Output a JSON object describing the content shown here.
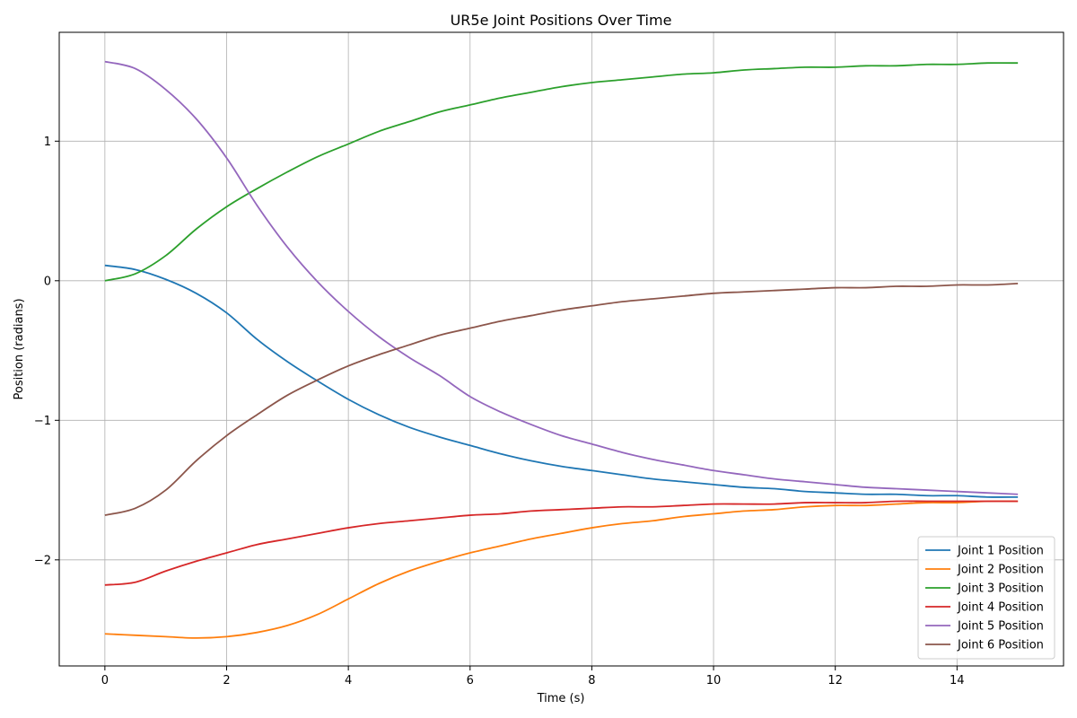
{
  "chart_data": {
    "type": "line",
    "title": "UR5e Joint Positions Over Time",
    "xlabel": "Time (s)",
    "ylabel": "Position (radians)",
    "xlim": [
      -0.75,
      15.75
    ],
    "ylim": [
      -2.76,
      1.78
    ],
    "x_ticks": [
      0,
      2,
      4,
      6,
      8,
      10,
      12,
      14
    ],
    "x_tick_labels": [
      "0",
      "2",
      "4",
      "6",
      "8",
      "10",
      "12",
      "14"
    ],
    "y_ticks": [
      1,
      0,
      -1,
      -2
    ],
    "y_tick_labels": [
      "1",
      "0",
      "−1",
      "−2"
    ],
    "grid": true,
    "legend_position": "lower-right",
    "x": [
      0,
      0.5,
      1,
      1.5,
      2,
      2.5,
      3,
      3.5,
      4,
      4.5,
      5,
      5.5,
      6,
      6.5,
      7,
      7.5,
      8,
      8.5,
      9,
      9.5,
      10,
      10.5,
      11,
      11.5,
      12,
      12.5,
      13,
      13.5,
      14,
      14.5,
      15
    ],
    "series": [
      {
        "name": "Joint 1 Position",
        "color": "#1f77b4",
        "values": [
          0.11,
          0.08,
          0.01,
          -0.09,
          -0.23,
          -0.42,
          -0.58,
          -0.72,
          -0.85,
          -0.96,
          -1.05,
          -1.12,
          -1.18,
          -1.24,
          -1.29,
          -1.33,
          -1.36,
          -1.39,
          -1.42,
          -1.44,
          -1.46,
          -1.48,
          -1.49,
          -1.51,
          -1.52,
          -1.53,
          -1.53,
          -1.54,
          -1.54,
          -1.55,
          -1.55
        ]
      },
      {
        "name": "Joint 2 Position",
        "color": "#ff7f0e",
        "values": [
          -2.53,
          -2.54,
          -2.55,
          -2.56,
          -2.55,
          -2.52,
          -2.47,
          -2.39,
          -2.28,
          -2.17,
          -2.08,
          -2.01,
          -1.95,
          -1.9,
          -1.85,
          -1.81,
          -1.77,
          -1.74,
          -1.72,
          -1.69,
          -1.67,
          -1.65,
          -1.64,
          -1.62,
          -1.61,
          -1.61,
          -1.6,
          -1.59,
          -1.59,
          -1.58,
          -1.58
        ]
      },
      {
        "name": "Joint 3 Position",
        "color": "#2ca02c",
        "values": [
          0.0,
          0.05,
          0.18,
          0.37,
          0.53,
          0.66,
          0.78,
          0.89,
          0.98,
          1.07,
          1.14,
          1.21,
          1.26,
          1.31,
          1.35,
          1.39,
          1.42,
          1.44,
          1.46,
          1.48,
          1.49,
          1.51,
          1.52,
          1.53,
          1.53,
          1.54,
          1.54,
          1.55,
          1.55,
          1.56,
          1.56
        ]
      },
      {
        "name": "Joint 4 Position",
        "color": "#d62728",
        "values": [
          -2.18,
          -2.16,
          -2.08,
          -2.01,
          -1.95,
          -1.89,
          -1.85,
          -1.81,
          -1.77,
          -1.74,
          -1.72,
          -1.7,
          -1.68,
          -1.67,
          -1.65,
          -1.64,
          -1.63,
          -1.62,
          -1.62,
          -1.61,
          -1.6,
          -1.6,
          -1.6,
          -1.59,
          -1.59,
          -1.59,
          -1.58,
          -1.58,
          -1.58,
          -1.58,
          -1.58
        ]
      },
      {
        "name": "Joint 5 Position",
        "color": "#9467bd",
        "values": [
          1.57,
          1.52,
          1.37,
          1.16,
          0.88,
          0.54,
          0.24,
          -0.01,
          -0.22,
          -0.4,
          -0.55,
          -0.68,
          -0.83,
          -0.94,
          -1.03,
          -1.11,
          -1.17,
          -1.23,
          -1.28,
          -1.32,
          -1.36,
          -1.39,
          -1.42,
          -1.44,
          -1.46,
          -1.48,
          -1.49,
          -1.5,
          -1.51,
          -1.52,
          -1.53
        ]
      },
      {
        "name": "Joint 6 Position",
        "color": "#8c564b",
        "values": [
          -1.68,
          -1.63,
          -1.5,
          -1.29,
          -1.11,
          -0.96,
          -0.82,
          -0.71,
          -0.61,
          -0.53,
          -0.46,
          -0.39,
          -0.34,
          -0.29,
          -0.25,
          -0.21,
          -0.18,
          -0.15,
          -0.13,
          -0.11,
          -0.09,
          -0.08,
          -0.07,
          -0.06,
          -0.05,
          -0.05,
          -0.04,
          -0.04,
          -0.03,
          -0.03,
          -0.02
        ]
      }
    ]
  }
}
